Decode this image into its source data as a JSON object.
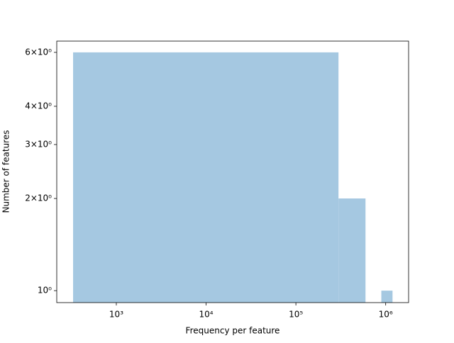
{
  "chart_data": {
    "type": "histogram",
    "xlabel": "Frequency per feature",
    "ylabel": "Number of features",
    "bins": [
      330,
      298250,
      596170,
      894090,
      1192010
    ],
    "values": [
      6,
      2,
      0,
      1
    ],
    "color": "#a5c8e1",
    "xscale": "log",
    "yscale": "log",
    "xlim": [
      217,
      1800000
    ],
    "ylim": [
      0.914,
      6.53
    ],
    "xticks": [
      {
        "value": 1000,
        "label": "10³"
      },
      {
        "value": 10000,
        "label": "10⁴"
      },
      {
        "value": 100000,
        "label": "10⁵"
      },
      {
        "value": 1000000,
        "label": "10⁶"
      }
    ],
    "yticks": [
      {
        "value": 1,
        "label": "10⁰"
      },
      {
        "value": 2,
        "label": "2×10⁰"
      },
      {
        "value": 3,
        "label": "3×10⁰"
      },
      {
        "value": 4,
        "label": "4×10⁰"
      },
      {
        "value": 6,
        "label": "6×10⁰"
      }
    ]
  }
}
